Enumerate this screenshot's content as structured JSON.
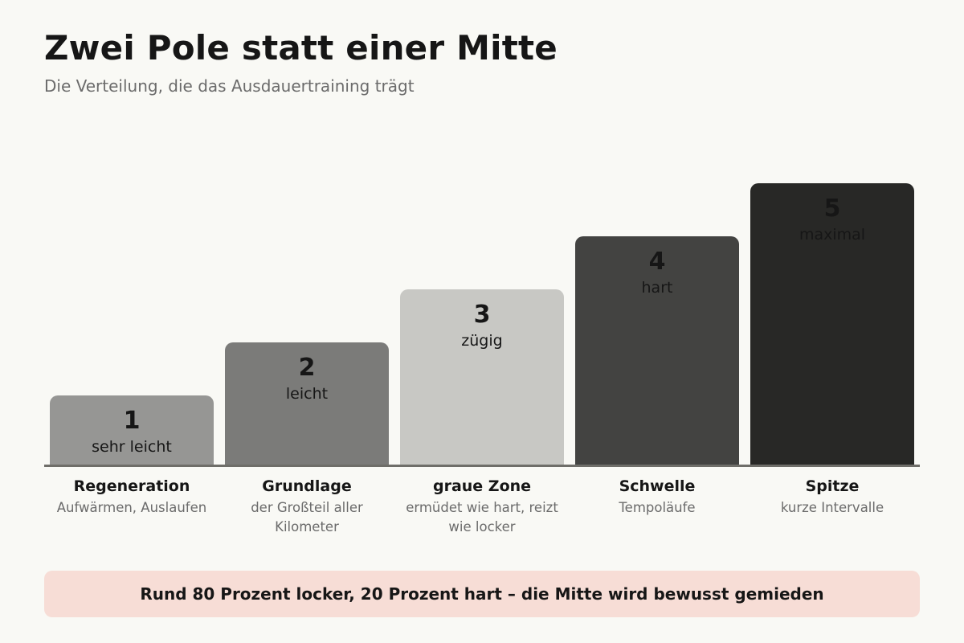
{
  "header": {
    "title": "Zwei Pole statt einer Mitte",
    "subtitle": "Die Verteilung, die das Ausdauertraining trägt"
  },
  "zones": [
    {
      "number": "1",
      "level": 1,
      "intensity": "sehr leicht",
      "name": "Regeneration",
      "note": "Aufwärmen, Auslaufen",
      "color": "#969694"
    },
    {
      "number": "2",
      "level": 2,
      "intensity": "leicht",
      "name": "Grundlage",
      "note": "der Großteil aller Kilometer",
      "color": "#7b7b79"
    },
    {
      "number": "3",
      "level": 3,
      "intensity": "zügig",
      "name": "graue Zone",
      "note": "ermüdet wie hart, reizt wie locker",
      "color": "#c8c8c4"
    },
    {
      "number": "4",
      "level": 4,
      "intensity": "hart",
      "name": "Schwelle",
      "note": "Tempoläufe",
      "color": "#434341"
    },
    {
      "number": "5",
      "level": 5,
      "intensity": "maximal",
      "name": "Spitze",
      "note": "kurze Intervalle",
      "color": "#282826"
    }
  ],
  "banner": {
    "text": "Rund 80 Prozent locker, 20 Prozent hart – die Mitte wird bewusst gemieden"
  }
}
